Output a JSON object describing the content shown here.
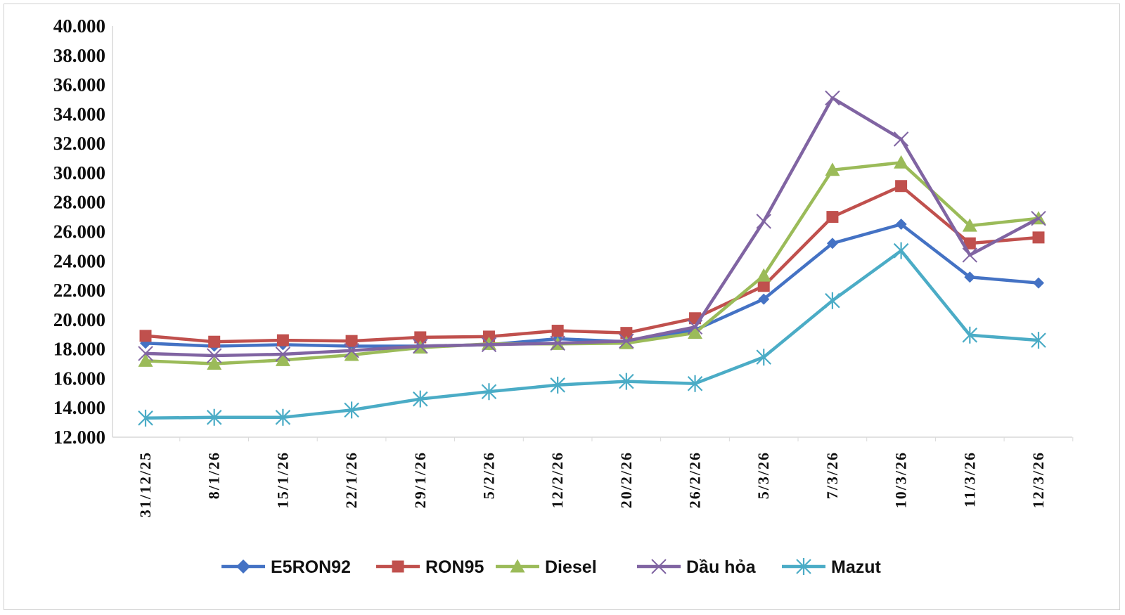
{
  "chart_data": {
    "type": "line",
    "title": "",
    "xlabel": "",
    "ylabel": "",
    "categories": [
      "31/12/25",
      "8/1/26",
      "15/1/26",
      "22/1/26",
      "29/1/26",
      "5/2/26",
      "12/2/26",
      "20/2/26",
      "26/2/26",
      "5/3/26",
      "7/3/26",
      "10/3/26",
      "11/3/26",
      "12/3/26"
    ],
    "ylim": [
      12000,
      40000
    ],
    "yticks": [
      "12.000",
      "14.000",
      "16.000",
      "18.000",
      "20.000",
      "22.000",
      "24.000",
      "26.000",
      "28.000",
      "30.000",
      "32.000",
      "34.000",
      "36.000",
      "38.000",
      "40.000"
    ],
    "legend_position": "bottom",
    "series": [
      {
        "name": "E5RON92",
        "color": "#4472C4",
        "marker": "diamond",
        "values": [
          18400,
          18200,
          18300,
          18200,
          18200,
          18300,
          18700,
          18500,
          19300,
          21400,
          25200,
          26500,
          22900,
          22500
        ]
      },
      {
        "name": "RON95",
        "color": "#C0504D",
        "marker": "square",
        "values": [
          18900,
          18500,
          18600,
          18550,
          18800,
          18850,
          19250,
          19100,
          20100,
          22300,
          27000,
          29100,
          25200,
          25600
        ]
      },
      {
        "name": "Diesel",
        "color": "#9BBB59",
        "marker": "triangle",
        "values": [
          17200,
          17000,
          17250,
          17600,
          18100,
          18350,
          18350,
          18400,
          19100,
          23000,
          30200,
          30700,
          26400,
          26900
        ]
      },
      {
        "name": "Dầu hỏa",
        "color": "#8064A2",
        "marker": "x",
        "values": [
          17700,
          17550,
          17650,
          17900,
          18200,
          18300,
          18400,
          18550,
          19500,
          26700,
          35100,
          32300,
          24400,
          26900
        ]
      },
      {
        "name": "Mazut",
        "color": "#4BACC6",
        "marker": "asterisk",
        "values": [
          13300,
          13350,
          13350,
          13850,
          14600,
          15100,
          15550,
          15800,
          15650,
          17450,
          21300,
          24700,
          18950,
          18600
        ]
      }
    ]
  }
}
